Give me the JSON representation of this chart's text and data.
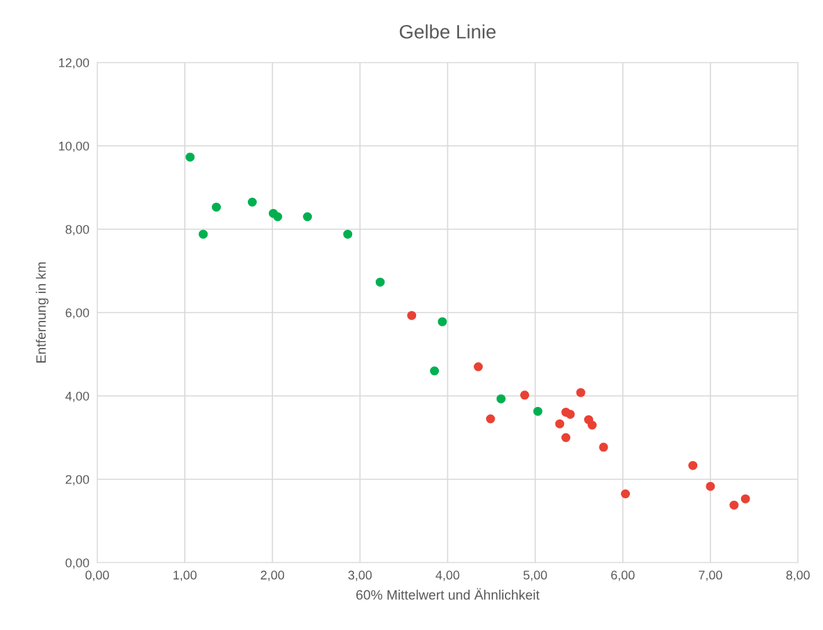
{
  "chart_data": {
    "type": "scatter",
    "title": "Gelbe Linie",
    "xlabel": "60% Mittelwert und Ähnlichkeit",
    "ylabel": "Entfernung in km",
    "xlim": [
      0,
      8
    ],
    "ylim": [
      0,
      12
    ],
    "xticks": [
      {
        "value": 0,
        "label": "0,00"
      },
      {
        "value": 1,
        "label": "1,00"
      },
      {
        "value": 2,
        "label": "2,00"
      },
      {
        "value": 3,
        "label": "3,00"
      },
      {
        "value": 4,
        "label": "4,00"
      },
      {
        "value": 5,
        "label": "5,00"
      },
      {
        "value": 6,
        "label": "6,00"
      },
      {
        "value": 7,
        "label": "7,00"
      },
      {
        "value": 8,
        "label": "8,00"
      }
    ],
    "yticks": [
      {
        "value": 0,
        "label": "0,00"
      },
      {
        "value": 2,
        "label": "2,00"
      },
      {
        "value": 4,
        "label": "4,00"
      },
      {
        "value": 6,
        "label": "6,00"
      },
      {
        "value": 8,
        "label": "8,00"
      },
      {
        "value": 10,
        "label": "10,00"
      },
      {
        "value": 12,
        "label": "12,00"
      }
    ],
    "grid": true,
    "marker": "circle",
    "series": [
      {
        "color": "#00b050",
        "x": [
          1.06,
          1.21,
          1.36,
          1.77,
          2.01,
          2.06,
          2.4,
          2.86,
          3.23,
          3.94,
          3.85,
          4.61,
          5.03
        ],
        "values": [
          9.73,
          7.88,
          8.53,
          8.65,
          8.38,
          8.3,
          8.3,
          7.88,
          6.73,
          5.78,
          4.6,
          3.93,
          3.63
        ]
      },
      {
        "color": "#e94234",
        "x": [
          3.59,
          4.35,
          4.49,
          4.88,
          5.52,
          5.28,
          5.35,
          5.4,
          5.35,
          5.61,
          5.65,
          5.78,
          6.03,
          6.8,
          7.0,
          7.27,
          7.4
        ],
        "values": [
          5.93,
          4.7,
          3.45,
          4.02,
          4.08,
          3.33,
          3.61,
          3.56,
          3.0,
          3.43,
          3.3,
          2.77,
          1.65,
          2.33,
          1.83,
          1.38,
          1.53
        ]
      }
    ]
  }
}
